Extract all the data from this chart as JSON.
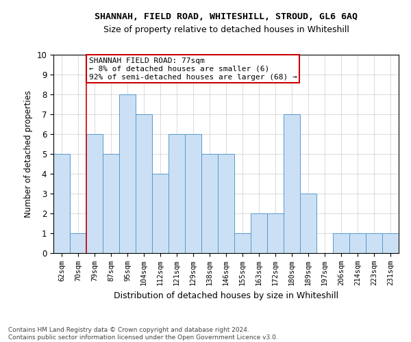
{
  "title_line1": "SHANNAH, FIELD ROAD, WHITESHILL, STROUD, GL6 6AQ",
  "title_line2": "Size of property relative to detached houses in Whiteshill",
  "xlabel": "Distribution of detached houses by size in Whiteshill",
  "ylabel": "Number of detached properties",
  "categories": [
    "62sqm",
    "70sqm",
    "79sqm",
    "87sqm",
    "95sqm",
    "104sqm",
    "112sqm",
    "121sqm",
    "129sqm",
    "138sqm",
    "146sqm",
    "155sqm",
    "163sqm",
    "172sqm",
    "180sqm",
    "189sqm",
    "197sqm",
    "206sqm",
    "214sqm",
    "223sqm",
    "231sqm"
  ],
  "values": [
    5,
    1,
    6,
    5,
    8,
    7,
    4,
    6,
    6,
    5,
    5,
    1,
    2,
    2,
    7,
    3,
    0,
    1,
    1,
    1,
    1
  ],
  "bar_color": "#cce0f5",
  "bar_edge_color": "#5599cc",
  "highlight_index": 2,
  "highlight_line_color": "#cc0000",
  "ylim": [
    0,
    10
  ],
  "yticks": [
    0,
    1,
    2,
    3,
    4,
    5,
    6,
    7,
    8,
    9,
    10
  ],
  "annotation_text": "SHANNAH FIELD ROAD: 77sqm\n← 8% of detached houses are smaller (6)\n92% of semi-detached houses are larger (68) →",
  "annotation_box_color": "#ffffff",
  "annotation_box_edge": "#cc0000",
  "footer_line1": "Contains HM Land Registry data © Crown copyright and database right 2024.",
  "footer_line2": "Contains public sector information licensed under the Open Government Licence v3.0.",
  "background_color": "#ffffff",
  "grid_color": "#cccccc"
}
